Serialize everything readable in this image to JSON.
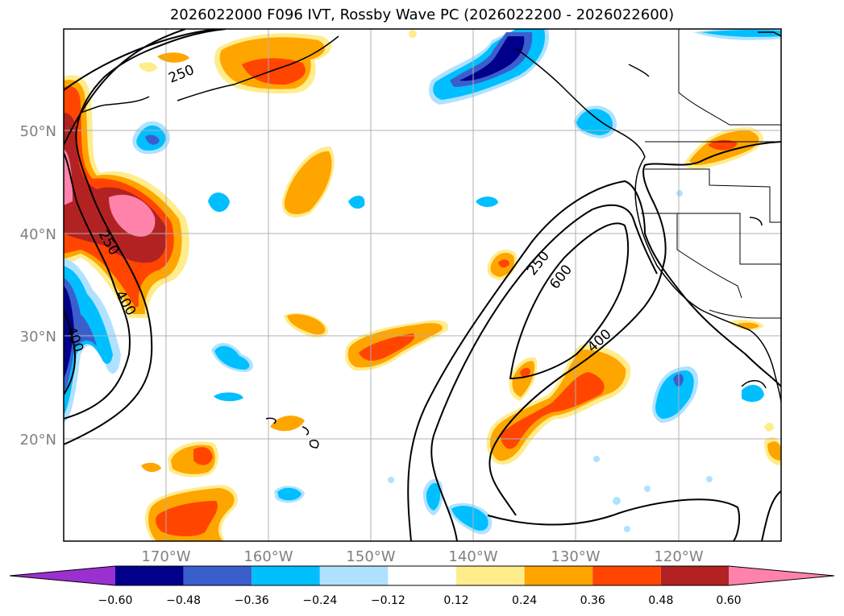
{
  "title": "2026022000 F096 IVT, Rossby Wave PC (2026022200 - 2026022600)",
  "lat_labels": [
    "50°N",
    "40°N",
    "30°N",
    "20°N"
  ],
  "lon_labels": [
    "170°W",
    "160°W",
    "150°W",
    "140°W",
    "130°W",
    "120°W"
  ],
  "contour_labels": [
    "250",
    "250",
    "400",
    "400",
    "250",
    "600",
    "400"
  ],
  "colorbar": {
    "ticks": [
      "−0.60",
      "−0.48",
      "−0.36",
      "−0.24",
      "−0.12",
      "0.12",
      "0.24",
      "0.36",
      "0.48",
      "0.60"
    ],
    "colors": [
      "#9b30d0",
      "#00008b",
      "#3a5fcd",
      "#00bfff",
      "#b0e2ff",
      "#ffffff",
      "#ffec8b",
      "#ffa500",
      "#ff4500",
      "#b22222",
      "#ff82ab"
    ]
  }
}
